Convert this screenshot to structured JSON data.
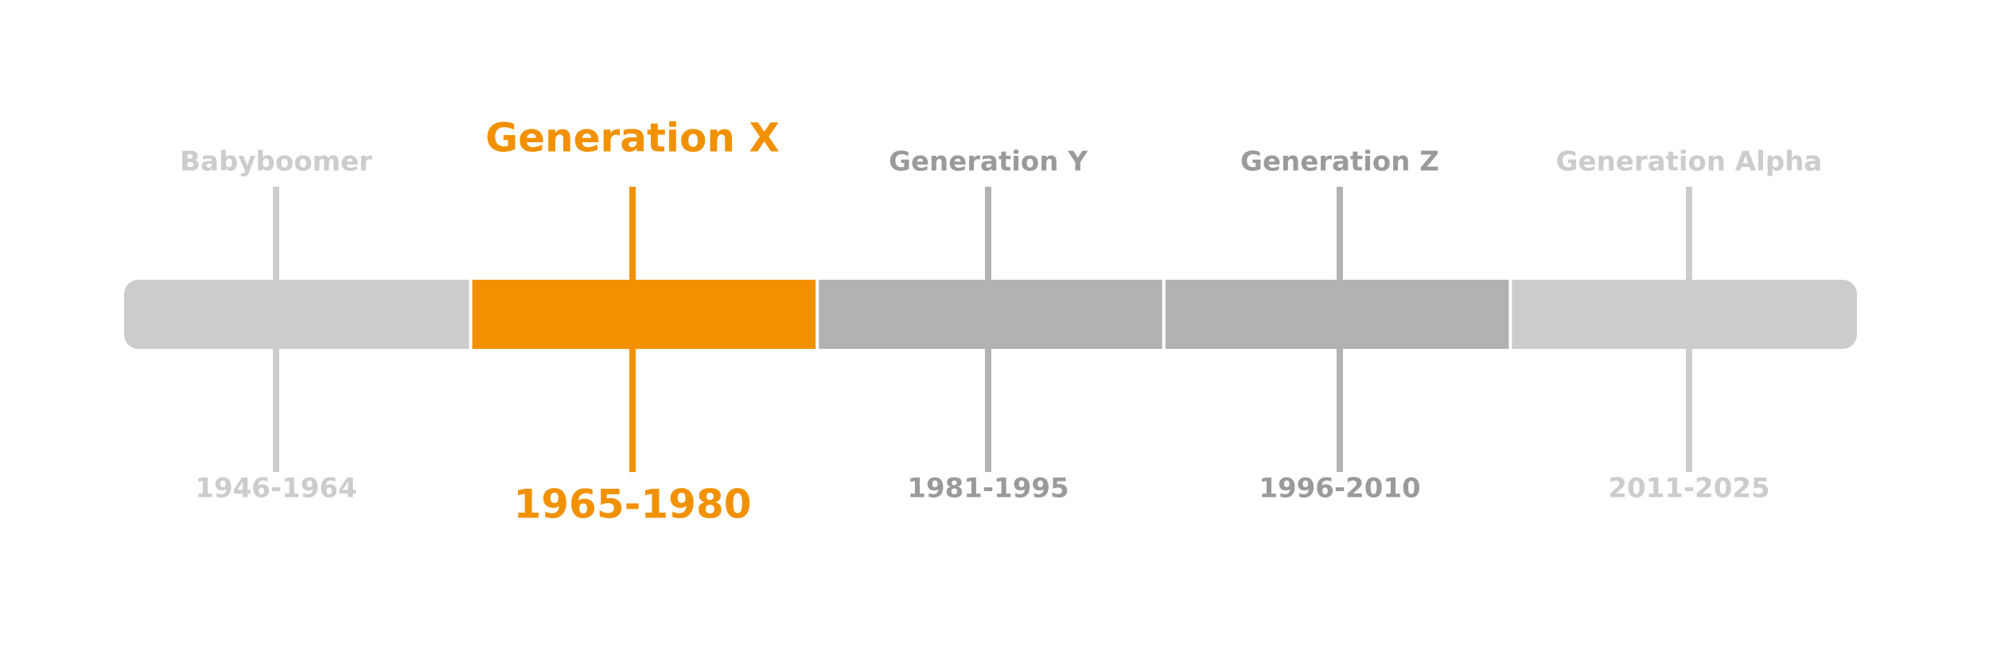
{
  "segments": [
    {
      "label": "Babyboomer",
      "years": "1946-1964",
      "color": "#cccccc",
      "text_color": "#cccccc"
    },
    {
      "label": "Generation X",
      "years": "1965-1980",
      "color": "#f29100",
      "text_color": "#f29100",
      "highlight": true
    },
    {
      "label": "Generation Y",
      "years": "1981-1995",
      "color": "#b2b2b2",
      "text_color": "#9a9a9a"
    },
    {
      "label": "Generation Z",
      "years": "1996-2010",
      "color": "#b2b2b2",
      "text_color": "#9a9a9a"
    },
    {
      "label": "Generation Alpha",
      "years": "2011-2025",
      "color": "#cccccc",
      "text_color": "#cccccc"
    }
  ]
}
